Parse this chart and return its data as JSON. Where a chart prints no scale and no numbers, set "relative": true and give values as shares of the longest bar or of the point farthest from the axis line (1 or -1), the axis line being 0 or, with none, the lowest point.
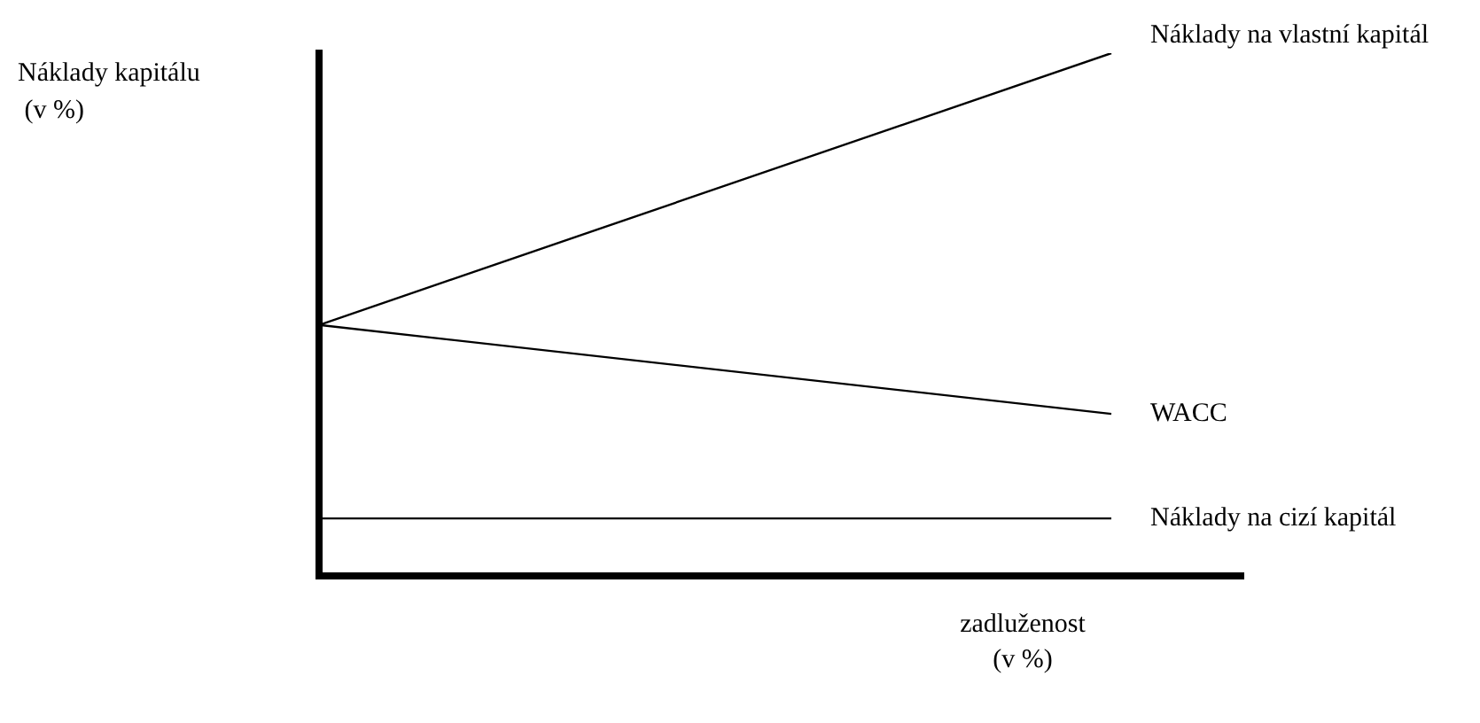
{
  "chart_data": {
    "type": "line",
    "relative": true,
    "xlabel": "zadluženost\n(v %)",
    "ylabel": "Náklady kapitálu\n (v %)",
    "categories": [
      null,
      null
    ],
    "legend": false,
    "marker": "none",
    "ref_lines": [
      {
        "axis": "y",
        "value": 0,
        "color": "#000000"
      }
    ],
    "line_style": "solid",
    "series": [
      {
        "name": "Náklady na vlastní kapitál",
        "color": "#000000",
        "values": [
          0.48,
          1
        ]
      },
      {
        "name": "WACC",
        "color": "#000000",
        "values": [
          0.48,
          0.31
        ]
      },
      {
        "name": "Náklady na cizí kapitál",
        "color": "#000000",
        "values": [
          0.11,
          0.11
        ]
      }
    ]
  }
}
